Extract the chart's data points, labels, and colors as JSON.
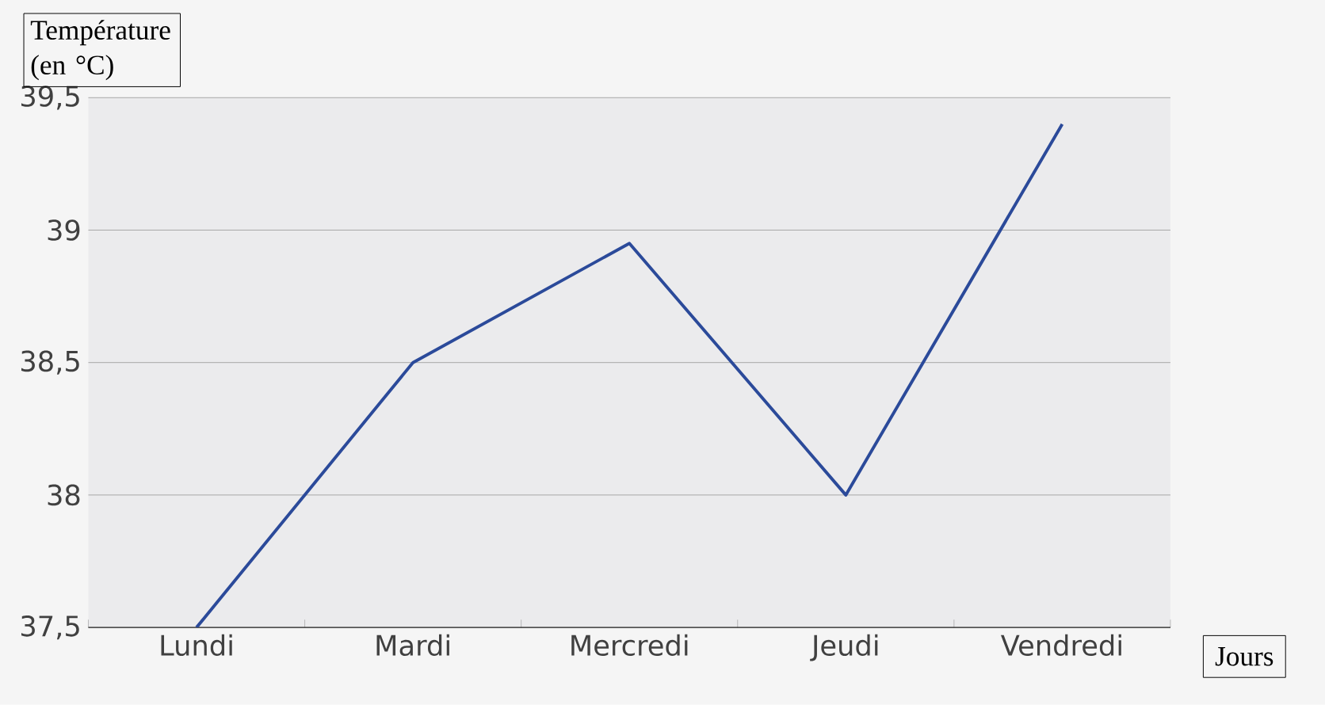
{
  "chart_data": {
    "type": "line",
    "xlabel": "Jours",
    "ylabel": "Température (en °C)",
    "categories": [
      "Lundi",
      "Mardi",
      "Mercredi",
      "Jeudi",
      "Vendredi"
    ],
    "series": [
      {
        "color": "#2b4a9a",
        "values": [
          37.5,
          38.5,
          38.95,
          38,
          39.4
        ]
      }
    ],
    "ylim": [
      37.5,
      39.5
    ],
    "yticks": [
      {
        "value": 37.5,
        "label": "37,5"
      },
      38,
      {
        "value": 38.5,
        "label": "38,5"
      },
      39,
      {
        "value": 39.5,
        "label": "39,5"
      }
    ],
    "grid": "y",
    "marker": "none",
    "line_style": "solid"
  }
}
